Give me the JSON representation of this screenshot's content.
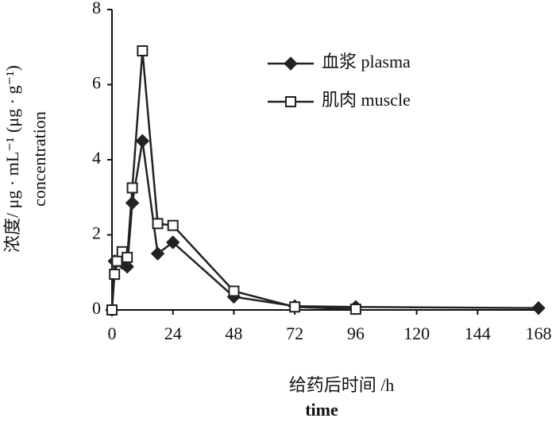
{
  "chart_data": {
    "type": "line",
    "x_label": "给药后时间 /h",
    "x_label_en": "time",
    "y_label": "浓度/ μg · mL⁻¹ (μg · g⁻¹)",
    "y_label_en": "concentration",
    "xlim": [
      0,
      168
    ],
    "xticks": [
      0,
      24,
      48,
      72,
      96,
      120,
      144,
      168
    ],
    "ylim": [
      0,
      8
    ],
    "yticks": [
      0,
      2,
      4,
      6,
      8
    ],
    "series": [
      {
        "name": "血浆 plasma",
        "color": "#222222",
        "marker": "diamond",
        "x": [
          0,
          1,
          2,
          4,
          6,
          8,
          12,
          18,
          24,
          48,
          72,
          96,
          168
        ],
        "values": [
          0,
          1.3,
          1.3,
          1.25,
          1.15,
          2.85,
          4.5,
          1.5,
          1.8,
          0.35,
          0.1,
          0.08,
          0.05
        ]
      },
      {
        "name": "肌肉 muscle",
        "color": "#222222",
        "marker": "square",
        "x": [
          0,
          1,
          2,
          4,
          6,
          8,
          12,
          18,
          24,
          48,
          72,
          96
        ],
        "values": [
          0,
          0.95,
          1.3,
          1.55,
          1.4,
          3.25,
          6.9,
          2.3,
          2.25,
          0.5,
          0.08,
          0.02
        ]
      }
    ]
  }
}
